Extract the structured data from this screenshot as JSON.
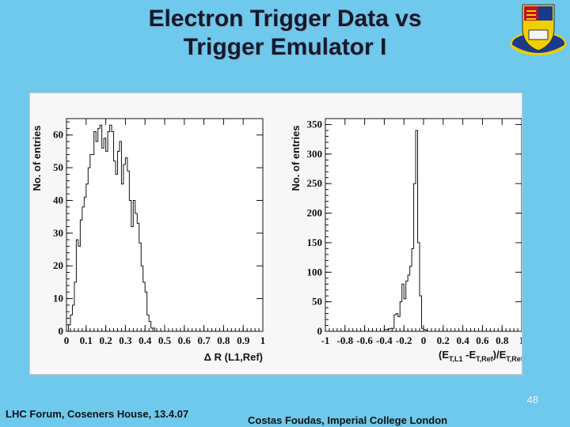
{
  "slide": {
    "title_line1": "Electron Trigger Data vs",
    "title_line2": "Trigger Emulator I",
    "page_number": "48",
    "footer_left": "LHC Forum, Coseners House, 13.4.07",
    "footer_right": "Costas Foudas, Imperial College London"
  },
  "chart_data": [
    {
      "type": "bar",
      "ylabel": "No. of entries",
      "xlabel": "Δ R (L1,Ref)",
      "xlim": [
        0,
        1
      ],
      "ylim": [
        0,
        65
      ],
      "xticks": [
        "0",
        "0.1",
        "0.2",
        "0.3",
        "0.4",
        "0.5",
        "0.6",
        "0.7",
        "0.8",
        "0.9",
        "1"
      ],
      "yticks": [
        "0",
        "10",
        "20",
        "30",
        "40",
        "50",
        "60"
      ],
      "bin_width": 0.01,
      "values": [
        0,
        2,
        5,
        8,
        15,
        28,
        26,
        34,
        38,
        41,
        45,
        50,
        54,
        54,
        61,
        58,
        62,
        63,
        56,
        59,
        55,
        61,
        63,
        61,
        52,
        48,
        55,
        58,
        45,
        51,
        53,
        49,
        40,
        32,
        40,
        36,
        33,
        27,
        20,
        15,
        12,
        5,
        3,
        1,
        1,
        0
      ]
    },
    {
      "type": "bar",
      "ylabel": "No. of entries",
      "xlabel": "(E",
      "xlabel_sub1": "T,L1",
      "xlabel_mid": " -E",
      "xlabel_sub2": "T,Ref",
      "xlabel_mid2": ")/E",
      "xlabel_sub3": "T,Ref",
      "xlim": [
        -1,
        1
      ],
      "ylim": [
        0,
        360
      ],
      "xticks": [
        "-1",
        "-0.8",
        "-0.6",
        "-0.4",
        "-0.2",
        "0",
        "0.2",
        "0.4",
        "0.6",
        "0.8",
        "1"
      ],
      "yticks": [
        "0",
        "50",
        "100",
        "150",
        "200",
        "250",
        "300",
        "350"
      ],
      "bin_start": -0.4,
      "bin_width": 0.02,
      "values": [
        3,
        3,
        4,
        5,
        5,
        28,
        30,
        25,
        50,
        80,
        55,
        85,
        95,
        110,
        140,
        250,
        340,
        150,
        60,
        5,
        3,
        2
      ]
    }
  ]
}
